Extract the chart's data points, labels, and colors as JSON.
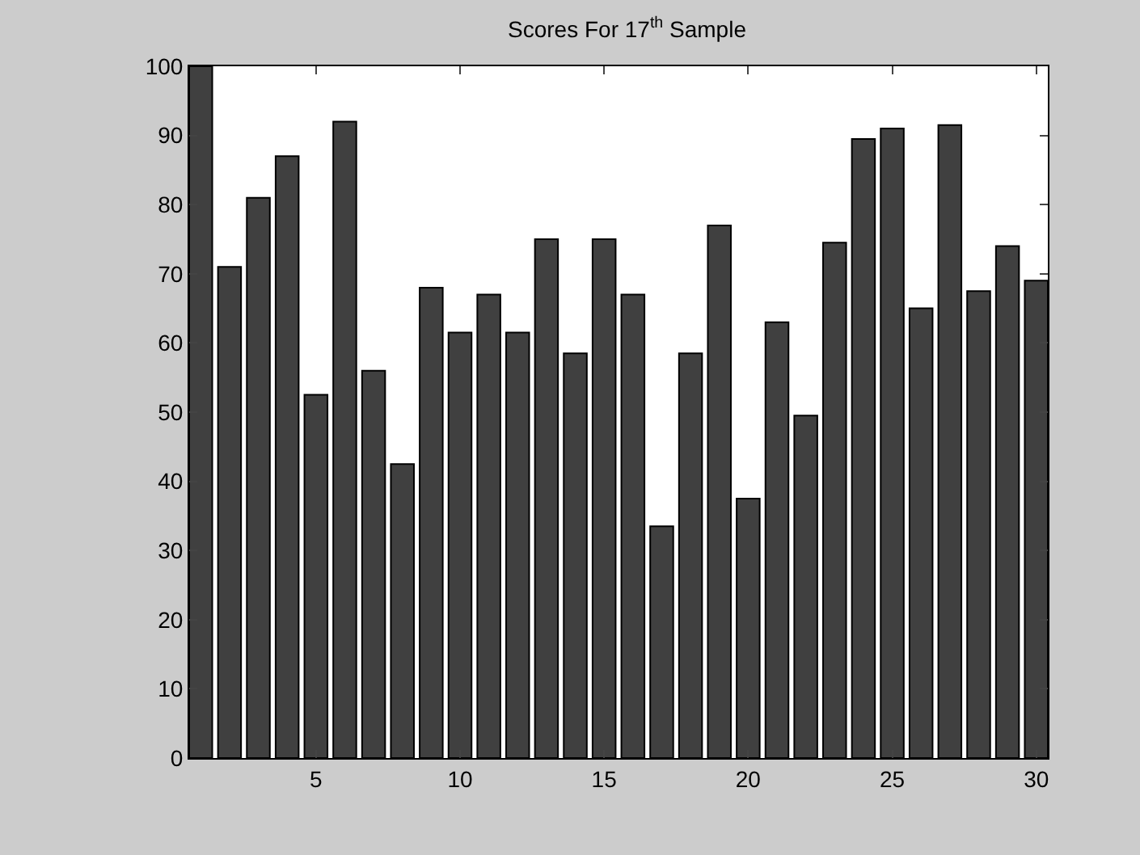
{
  "chart_data": {
    "type": "bar",
    "title": "Scores For 17$^{th}$ Sample",
    "x": [
      1,
      2,
      3,
      4,
      5,
      6,
      7,
      8,
      9,
      10,
      11,
      12,
      13,
      14,
      15,
      16,
      17,
      18,
      19,
      20,
      21,
      22,
      23,
      24,
      25,
      26,
      27,
      28,
      29,
      30
    ],
    "values": [
      100,
      71,
      81,
      87,
      52.5,
      92,
      56,
      42.5,
      68,
      61.5,
      67,
      61.5,
      75,
      58.5,
      75,
      67,
      33.5,
      58.5,
      77,
      37.5,
      63,
      49.5,
      74.5,
      89.5,
      91,
      65,
      91.5,
      67.5,
      74,
      69
    ],
    "color": "#404040",
    "xlim": [
      0.6,
      30.4
    ],
    "xticks": [
      5,
      10,
      15,
      20,
      25,
      30
    ],
    "ylim": [
      0,
      100
    ],
    "yticks": [
      0,
      10,
      20,
      30,
      40,
      50,
      60,
      70,
      80,
      90,
      100
    ],
    "grid": false,
    "legend": false
  }
}
